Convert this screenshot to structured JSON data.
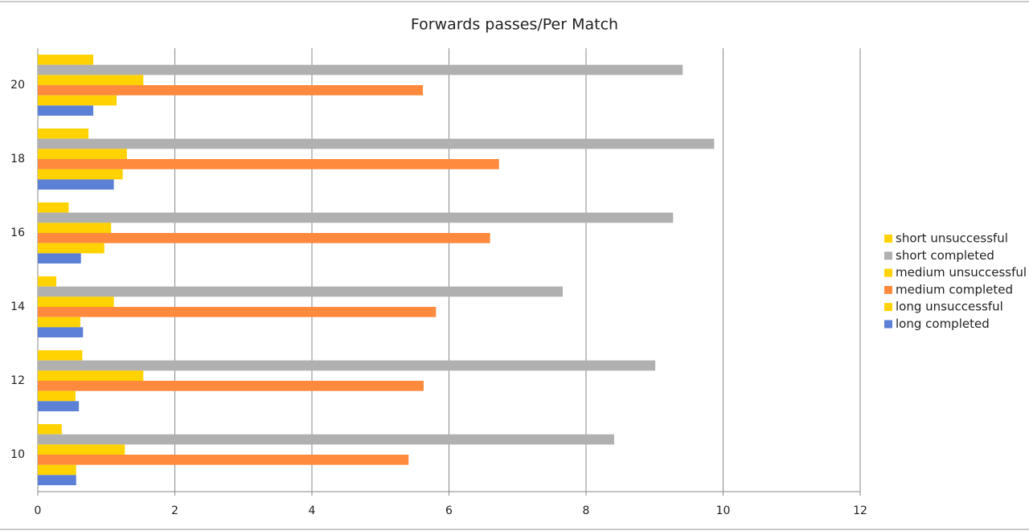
{
  "chart_data": {
    "type": "hbar",
    "title": "Forwards passes/Per Match",
    "categories": [
      "10",
      "12",
      "14",
      "16",
      "18",
      "20"
    ],
    "series": [
      {
        "name": "short unsuccessful",
        "color": "#ffd200",
        "values": [
          0.35,
          0.65,
          0.27,
          0.45,
          0.74,
          0.81
        ]
      },
      {
        "name": "short completed",
        "color": "#b0b0b0",
        "values": [
          8.41,
          9.01,
          7.66,
          9.27,
          9.87,
          9.41
        ]
      },
      {
        "name": "medium unsuccessful",
        "color": "#ffd200",
        "values": [
          1.27,
          1.54,
          1.11,
          1.07,
          1.3,
          1.54
        ]
      },
      {
        "name": "medium completed",
        "color": "#ff8a3d",
        "values": [
          5.41,
          5.63,
          5.81,
          6.6,
          6.73,
          5.62
        ]
      },
      {
        "name": "long unsuccessful",
        "color": "#ffd200",
        "values": [
          0.56,
          0.55,
          0.62,
          0.97,
          1.24,
          1.15
        ]
      },
      {
        "name": "long completed",
        "color": "#5b80d6",
        "values": [
          0.56,
          0.6,
          0.66,
          0.63,
          1.11,
          0.81
        ]
      }
    ],
    "xlim": [
      0,
      12
    ],
    "xticks": [
      0,
      2,
      4,
      6,
      8,
      10,
      12
    ],
    "grid": true,
    "legend": "right"
  }
}
